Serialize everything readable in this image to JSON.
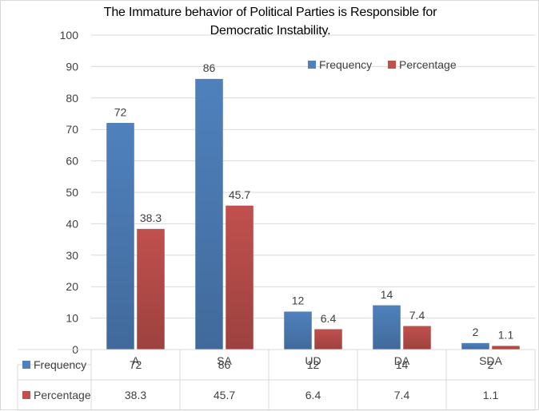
{
  "chart_data": {
    "type": "bar",
    "title_lines": [
      "The Immature behavior of Political Parties is Responsible for",
      "Democratic Instability."
    ],
    "categories": [
      "A",
      "SA",
      "UD",
      "DA",
      "SDA"
    ],
    "series": [
      {
        "name": "Frequency",
        "color": "#4f81bd",
        "values": [
          72,
          86,
          12,
          14,
          2
        ],
        "labels": [
          "72",
          "86",
          "12",
          "14",
          "2"
        ]
      },
      {
        "name": "Percentage",
        "color": "#c0504d",
        "values": [
          38.3,
          45.7,
          6.4,
          7.4,
          1.1
        ],
        "labels": [
          "38.3",
          "45.7",
          "6.4",
          "7.4",
          "1.1"
        ]
      }
    ],
    "ylim": [
      0,
      100
    ],
    "yticks": [
      "0",
      "10",
      "20",
      "30",
      "40",
      "50",
      "60",
      "70",
      "80",
      "90",
      "100"
    ],
    "grid": true,
    "legend_position": "top-right",
    "data_table": true
  }
}
